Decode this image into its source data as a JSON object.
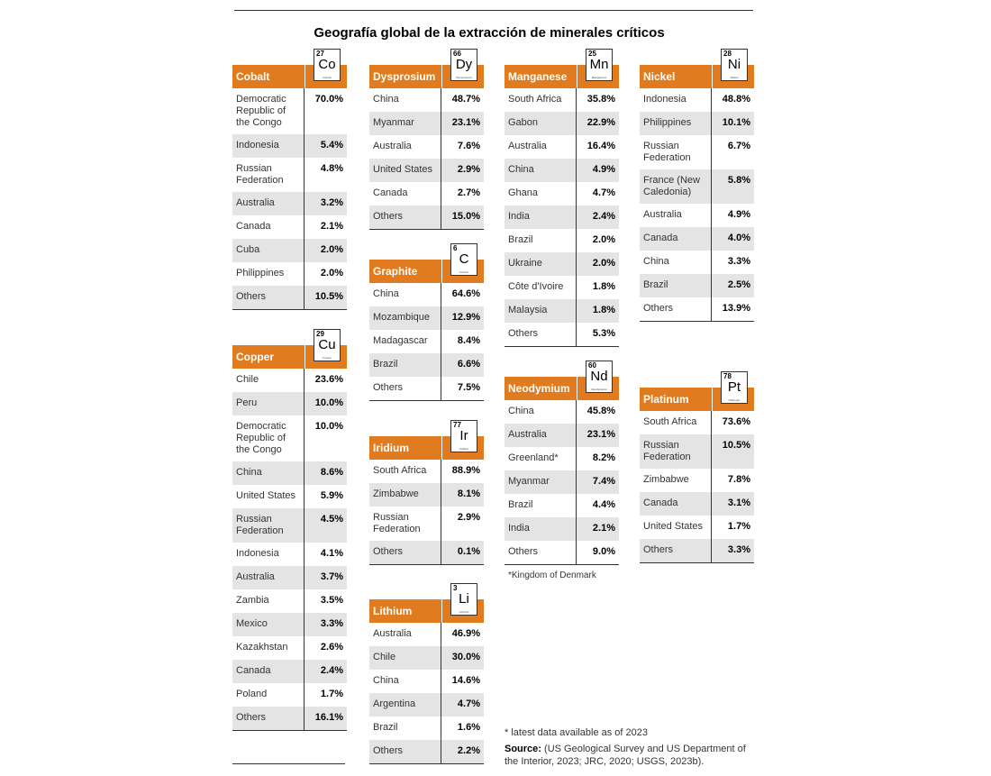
{
  "title": "Geografía global de la extracción de minerales críticos",
  "colors": {
    "header": "#e07b1f",
    "alt_row": "#e4e4e4"
  },
  "minerals": {
    "cobalt": {
      "name": "Cobalt",
      "number": "27",
      "symbol": "Co",
      "element": "Cobalt",
      "rows": [
        {
          "country": "Democratic Republic of the Congo",
          "pct": "70.0%"
        },
        {
          "country": "Indonesia",
          "pct": "5.4%"
        },
        {
          "country": "Russian Federation",
          "pct": "4.8%"
        },
        {
          "country": "Australia",
          "pct": "3.2%"
        },
        {
          "country": "Canada",
          "pct": "2.1%"
        },
        {
          "country": "Cuba",
          "pct": "2.0%"
        },
        {
          "country": "Philippines",
          "pct": "2.0%"
        },
        {
          "country": "Others",
          "pct": "10.5%"
        }
      ]
    },
    "copper": {
      "name": "Copper",
      "number": "29",
      "symbol": "Cu",
      "element": "Copper",
      "rows": [
        {
          "country": "Chile",
          "pct": "23.6%"
        },
        {
          "country": "Peru",
          "pct": "10.0%"
        },
        {
          "country": "Democratic Republic of the Congo",
          "pct": "10.0%"
        },
        {
          "country": "China",
          "pct": "8.6%"
        },
        {
          "country": "United States",
          "pct": "5.9%"
        },
        {
          "country": "Russian Federation",
          "pct": "4.5%"
        },
        {
          "country": "Indonesia",
          "pct": "4.1%"
        },
        {
          "country": "Australia",
          "pct": "3.7%"
        },
        {
          "country": "Zambia",
          "pct": "3.5%"
        },
        {
          "country": "Mexico",
          "pct": "3.3%"
        },
        {
          "country": "Kazakhstan",
          "pct": "2.6%"
        },
        {
          "country": "Canada",
          "pct": "2.4%"
        },
        {
          "country": "Poland",
          "pct": "1.7%"
        },
        {
          "country": "Others",
          "pct": "16.1%"
        }
      ]
    },
    "dysprosium": {
      "name": "Dysprosium",
      "number": "66",
      "symbol": "Dy",
      "element": "Dysprosium",
      "rows": [
        {
          "country": "China",
          "pct": "48.7%"
        },
        {
          "country": "Myanmar",
          "pct": "23.1%"
        },
        {
          "country": "Australia",
          "pct": "7.6%"
        },
        {
          "country": "United States",
          "pct": "2.9%"
        },
        {
          "country": "Canada",
          "pct": "2.7%"
        },
        {
          "country": "Others",
          "pct": "15.0%"
        }
      ]
    },
    "graphite": {
      "name": "Graphite",
      "number": "6",
      "symbol": "C",
      "element": "Carbon",
      "rows": [
        {
          "country": "China",
          "pct": "64.6%"
        },
        {
          "country": "Mozambique",
          "pct": "12.9%"
        },
        {
          "country": "Madagascar",
          "pct": "8.4%"
        },
        {
          "country": "Brazil",
          "pct": "6.6%"
        },
        {
          "country": "Others",
          "pct": "7.5%"
        }
      ]
    },
    "iridium": {
      "name": "Iridium",
      "number": "77",
      "symbol": "Ir",
      "element": "Iridium",
      "rows": [
        {
          "country": "South Africa",
          "pct": "88.9%"
        },
        {
          "country": "Zimbabwe",
          "pct": "8.1%"
        },
        {
          "country": "Russian Federation",
          "pct": "2.9%"
        },
        {
          "country": "Others",
          "pct": "0.1%"
        }
      ]
    },
    "lithium": {
      "name": "Lithium",
      "number": "3",
      "symbol": "Li",
      "element": "Lithium",
      "rows": [
        {
          "country": "Australia",
          "pct": "46.9%"
        },
        {
          "country": "Chile",
          "pct": "30.0%"
        },
        {
          "country": "China",
          "pct": "14.6%"
        },
        {
          "country": "Argentina",
          "pct": "4.7%"
        },
        {
          "country": "Brazil",
          "pct": "1.6%"
        },
        {
          "country": "Others",
          "pct": "2.2%"
        }
      ]
    },
    "manganese": {
      "name": "Manganese",
      "number": "25",
      "symbol": "Mn",
      "element": "Manganese",
      "rows": [
        {
          "country": "South Africa",
          "pct": "35.8%"
        },
        {
          "country": "Gabon",
          "pct": "22.9%"
        },
        {
          "country": "Australia",
          "pct": "16.4%"
        },
        {
          "country": "China",
          "pct": "4.9%"
        },
        {
          "country": "Ghana",
          "pct": "4.7%"
        },
        {
          "country": "India",
          "pct": "2.4%"
        },
        {
          "country": "Brazil",
          "pct": "2.0%"
        },
        {
          "country": "Ukraine",
          "pct": "2.0%"
        },
        {
          "country": "Côte d'Ivoire",
          "pct": "1.8%"
        },
        {
          "country": "Malaysia",
          "pct": "1.8%"
        },
        {
          "country": "Others",
          "pct": "5.3%"
        }
      ]
    },
    "neodymium": {
      "name": "Neodymium",
      "number": "60",
      "symbol": "Nd",
      "element": "Neodymium",
      "rows": [
        {
          "country": "China",
          "pct": "45.8%"
        },
        {
          "country": "Australia",
          "pct": "23.1%"
        },
        {
          "country": "Greenland*",
          "pct": "8.2%"
        },
        {
          "country": "Myanmar",
          "pct": "7.4%"
        },
        {
          "country": "Brazil",
          "pct": "4.4%"
        },
        {
          "country": "India",
          "pct": "2.1%"
        },
        {
          "country": "Others",
          "pct": "9.0%"
        }
      ]
    },
    "nickel": {
      "name": "Nickel",
      "number": "28",
      "symbol": "Ni",
      "element": "Nickel",
      "rows": [
        {
          "country": "Indonesia",
          "pct": "48.8%"
        },
        {
          "country": "Philippines",
          "pct": "10.1%"
        },
        {
          "country": "Russian Federation",
          "pct": "6.7%"
        },
        {
          "country": "France (New Caledonia)",
          "pct": "5.8%"
        },
        {
          "country": "Australia",
          "pct": "4.9%"
        },
        {
          "country": "Canada",
          "pct": "4.0%"
        },
        {
          "country": "China",
          "pct": "3.3%"
        },
        {
          "country": "Brazil",
          "pct": "2.5%"
        },
        {
          "country": "Others",
          "pct": "13.9%"
        }
      ]
    },
    "platinum": {
      "name": "Platinum",
      "number": "78",
      "symbol": "Pt",
      "element": "Platinum",
      "rows": [
        {
          "country": "South Africa",
          "pct": "73.6%"
        },
        {
          "country": "Russian Federation",
          "pct": "10.5%"
        },
        {
          "country": "Zimbabwe",
          "pct": "7.8%"
        },
        {
          "country": "Canada",
          "pct": "3.1%"
        },
        {
          "country": "United States",
          "pct": "1.7%"
        },
        {
          "country": "Others",
          "pct": "3.3%"
        }
      ]
    }
  },
  "notes": {
    "kingdom": "*Kingdom of Denmark",
    "latest": "* latest data available as of 2023",
    "source_label": "Source:",
    "source_text": "(US Geological Survey and US Department of the Interior, 2023; JRC, 2020; USGS, 2023b)."
  }
}
